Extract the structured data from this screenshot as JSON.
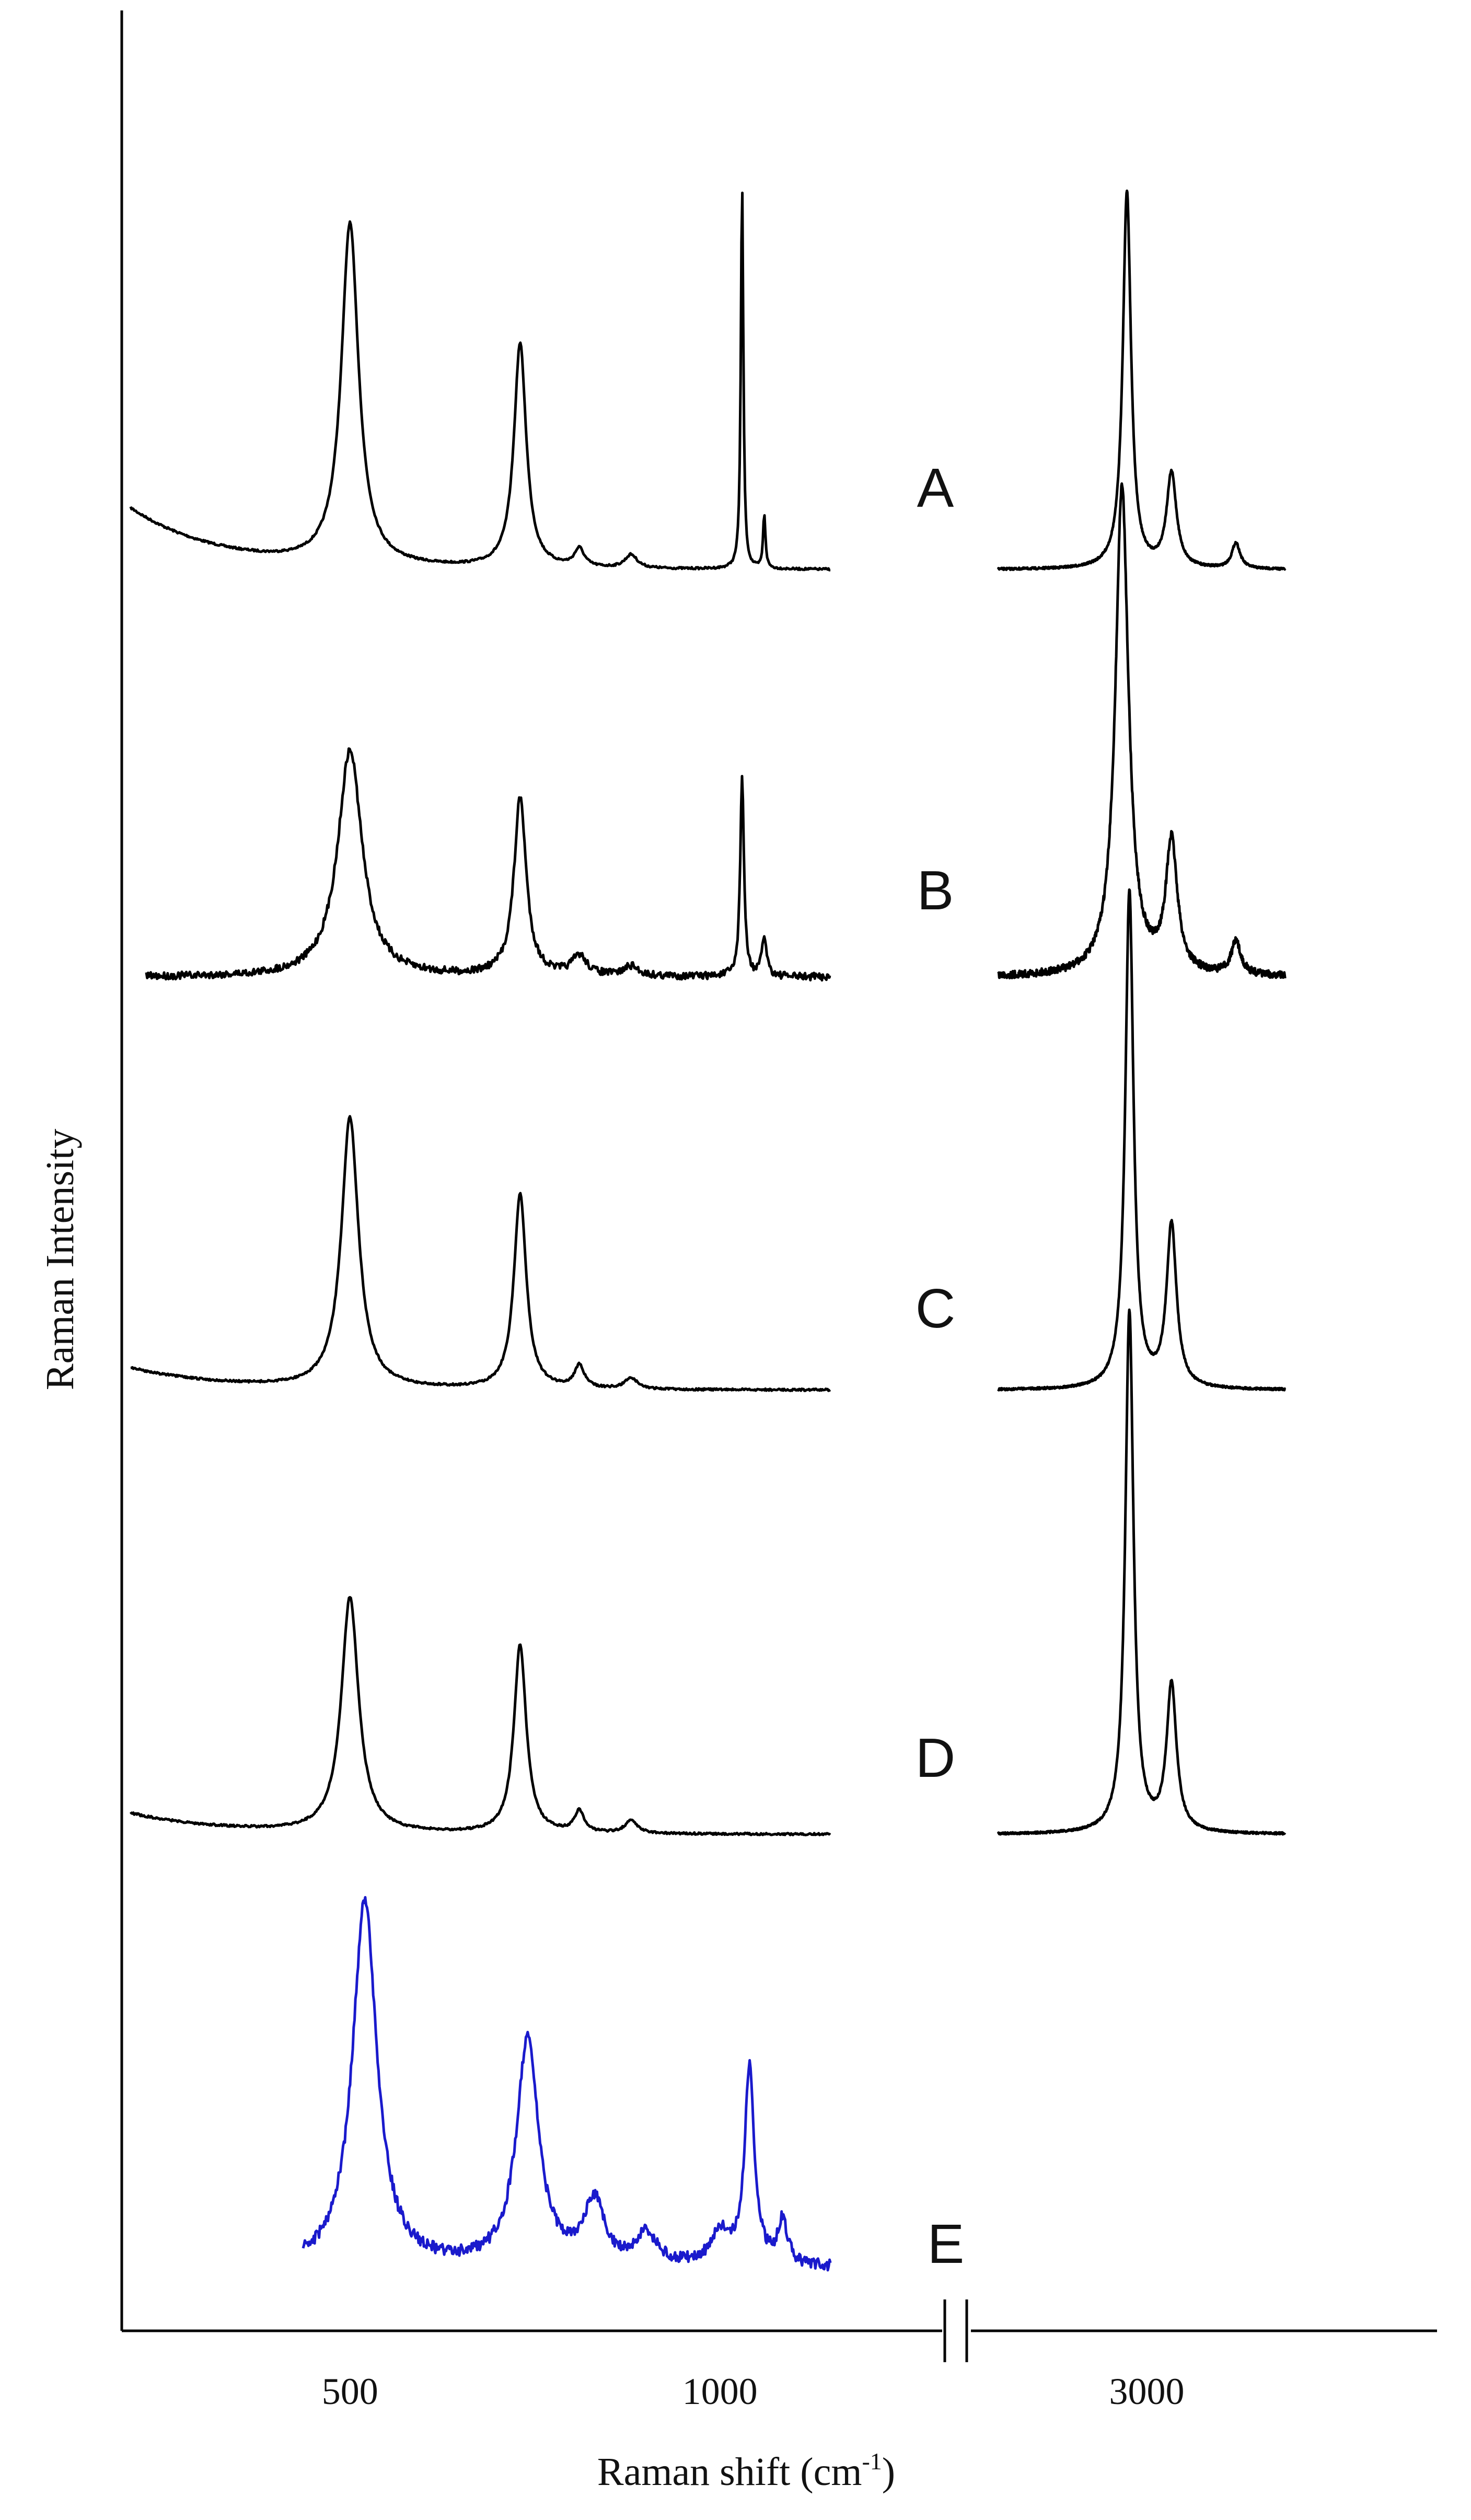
{
  "chart_data": {
    "type": "line",
    "title": "",
    "xlabel": "Raman shift (cm",
    "xlabel_sup": "-1",
    "xlabel_suffix": ")",
    "ylabel": "Raman Intensity",
    "x_ticks_left_segment": [
      500,
      1000
    ],
    "x_ticks_right_segment": [
      3000
    ],
    "x_axis_break": true,
    "x_segments": [
      {
        "name": "low",
        "xlim": [
          200,
          1150
        ]
      },
      {
        "name": "high",
        "xlim": [
          2700,
          3280
        ]
      }
    ],
    "legend": "none",
    "grid": false,
    "stacked_offset": true,
    "series": [
      {
        "name": "A",
        "color": "#000000",
        "baseline_low": 0.14,
        "peaks_low": [
          {
            "x": 500,
            "height": 0.76,
            "width": 14
          },
          {
            "x": 730,
            "height": 0.5,
            "width": 10
          },
          {
            "x": 810,
            "height": 0.04,
            "width": 8
          },
          {
            "x": 880,
            "height": 0.03,
            "width": 10
          },
          {
            "x": 1030,
            "height": 0.86,
            "width": 2
          },
          {
            "x": 1060,
            "height": 0.12,
            "width": 2
          }
        ],
        "baseline_high": 0.0,
        "peaks_high": [
          {
            "x": 2960,
            "height": 0.88,
            "width": 10
          },
          {
            "x": 3050,
            "height": 0.22,
            "width": 12
          },
          {
            "x": 3180,
            "height": 0.06,
            "width": 10
          }
        ]
      },
      {
        "name": "B",
        "color": "#000000",
        "baseline_low": 0.0,
        "peaks_low": [
          {
            "x": 500,
            "height": 0.7,
            "width": 20
          },
          {
            "x": 730,
            "height": 0.55,
            "width": 10
          },
          {
            "x": 810,
            "height": 0.06,
            "width": 12
          },
          {
            "x": 880,
            "height": 0.03,
            "width": 12
          },
          {
            "x": 1030,
            "height": 0.62,
            "width": 3
          },
          {
            "x": 1060,
            "height": 0.12,
            "width": 4
          }
        ],
        "baseline_high": 0.0,
        "peaks_high": [
          {
            "x": 2950,
            "height": 1.2,
            "width": 16
          },
          {
            "x": 3050,
            "height": 0.32,
            "width": 14
          },
          {
            "x": 3180,
            "height": 0.08,
            "width": 12
          }
        ]
      },
      {
        "name": "C",
        "color": "#000000",
        "baseline_low": 0.06,
        "peaks_low": [
          {
            "x": 500,
            "height": 0.72,
            "width": 14
          },
          {
            "x": 730,
            "height": 0.52,
            "width": 10
          },
          {
            "x": 810,
            "height": 0.06,
            "width": 8
          },
          {
            "x": 880,
            "height": 0.03,
            "width": 10
          }
        ],
        "baseline_high": 0.0,
        "peaks_high": [
          {
            "x": 2965,
            "height": 1.22,
            "width": 10
          },
          {
            "x": 3050,
            "height": 0.4,
            "width": 12
          }
        ]
      },
      {
        "name": "D",
        "color": "#000000",
        "baseline_low": 0.05,
        "peaks_low": [
          {
            "x": 500,
            "height": 0.55,
            "width": 14
          },
          {
            "x": 730,
            "height": 0.44,
            "width": 10
          },
          {
            "x": 810,
            "height": 0.05,
            "width": 8
          },
          {
            "x": 880,
            "height": 0.03,
            "width": 10
          }
        ],
        "baseline_high": 0.0,
        "peaks_high": [
          {
            "x": 2965,
            "height": 1.28,
            "width": 10
          },
          {
            "x": 3050,
            "height": 0.36,
            "width": 12
          }
        ]
      },
      {
        "name": "E",
        "color": "#1a1acc",
        "baseline_low": 0.0,
        "peaks_low": [
          {
            "x": 520,
            "height": 1.0,
            "width": 20
          },
          {
            "x": 740,
            "height": 0.62,
            "width": 18
          },
          {
            "x": 830,
            "height": 0.17,
            "width": 16
          },
          {
            "x": 900,
            "height": 0.08,
            "width": 18
          },
          {
            "x": 1000,
            "height": 0.09,
            "width": 14
          },
          {
            "x": 1040,
            "height": 0.54,
            "width": 8
          },
          {
            "x": 1085,
            "height": 0.12,
            "width": 8
          }
        ],
        "peaks_high": []
      }
    ]
  }
}
